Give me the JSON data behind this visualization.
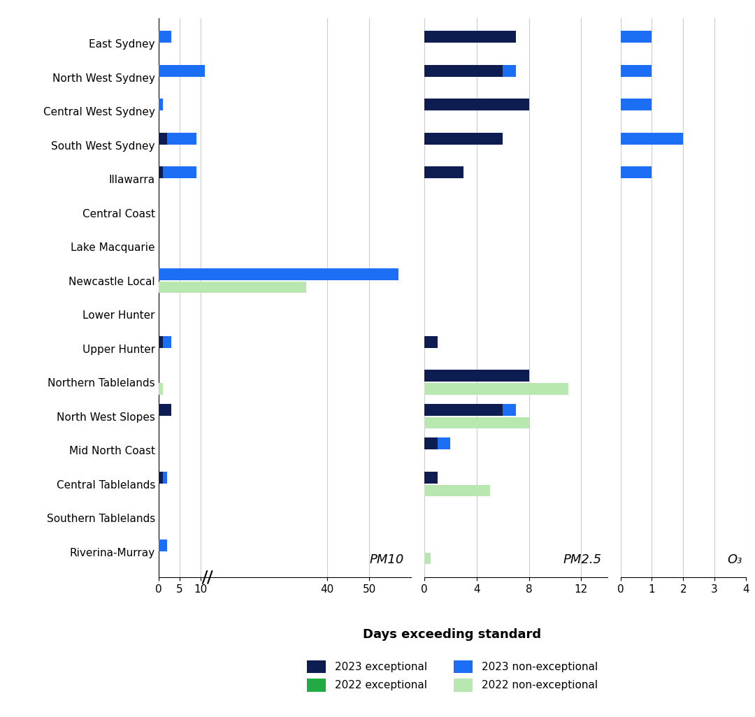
{
  "regions": [
    "East Sydney",
    "North West Sydney",
    "Central West Sydney",
    "South West Sydney",
    "Illawarra",
    "Central Coast",
    "Lake Macquarie",
    "Newcastle Local",
    "Lower Hunter",
    "Upper Hunter",
    "Northern Tablelands",
    "North West Slopes",
    "Mid North Coast",
    "Central Tablelands",
    "Southern Tablelands",
    "Riverina-Murray"
  ],
  "pm10": {
    "exc_2023": [
      0,
      0,
      0,
      2,
      1,
      0,
      0,
      0,
      0,
      1,
      0,
      3,
      0,
      1,
      0,
      0
    ],
    "non_exc_2023": [
      3,
      11,
      1,
      7,
      8,
      0,
      0,
      57,
      0,
      2,
      0,
      0,
      0,
      1,
      0,
      2
    ],
    "exc_2022": [
      0,
      0,
      0,
      0,
      0,
      0,
      0,
      0,
      0,
      0,
      0,
      0,
      0,
      0,
      0,
      0
    ],
    "non_exc_2022": [
      0,
      0,
      0,
      0,
      0,
      0,
      0,
      35,
      0,
      0,
      1,
      0,
      0,
      0,
      0,
      0
    ]
  },
  "pm25": {
    "exc_2023": [
      7,
      6,
      8,
      6,
      3,
      0,
      0,
      0,
      0,
      1,
      8,
      6,
      1,
      1,
      0,
      0
    ],
    "non_exc_2023": [
      0,
      1,
      0,
      0,
      0,
      0,
      0,
      0,
      0,
      0,
      0,
      1,
      1,
      0,
      0,
      0
    ],
    "exc_2022": [
      0,
      0,
      0,
      0,
      0,
      0,
      0,
      0,
      0,
      0,
      0,
      0,
      0,
      0,
      0,
      0
    ],
    "non_exc_2022": [
      0,
      0,
      0,
      0,
      0,
      0,
      0,
      0,
      0,
      0,
      11,
      8,
      0,
      5,
      0,
      0.5
    ]
  },
  "o3": {
    "exc_2023": [
      0,
      0,
      0,
      0,
      0,
      0,
      0,
      0,
      0,
      0,
      0,
      0,
      0,
      0,
      0,
      0
    ],
    "non_exc_2023": [
      1,
      1,
      1,
      2,
      1,
      0,
      0,
      0,
      0,
      0,
      0,
      0,
      0,
      0,
      0,
      0
    ],
    "exc_2022": [
      0,
      0,
      0,
      0,
      0,
      0,
      0,
      0,
      0,
      0,
      0,
      0,
      0,
      0,
      0,
      0
    ],
    "non_exc_2022": [
      0,
      0,
      0,
      0,
      0,
      0,
      0,
      0,
      0,
      0,
      0,
      0,
      0,
      0,
      0,
      0
    ]
  },
  "colors": {
    "exc_2023": "#0d1d52",
    "non_exc_2023": "#1c6ef5",
    "exc_2022": "#22aa44",
    "non_exc_2022": "#b8e8b0"
  },
  "xlabel": "Days exceeding standard"
}
